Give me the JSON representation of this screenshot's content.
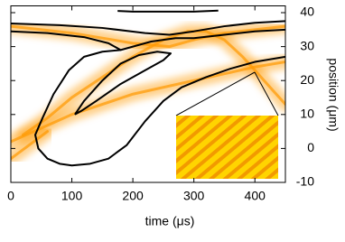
{
  "chart_data": {
    "type": "line",
    "x_label": "time (μs)",
    "y_label": "position (μm)",
    "xlim": [
      0,
      450
    ],
    "xticks": [
      0,
      100,
      200,
      300,
      400
    ],
    "ylim": [
      -10,
      42
    ],
    "yticks": [
      -10,
      0,
      10,
      20,
      30,
      40
    ],
    "beam_color": "#ff9900",
    "contour_color": "#000000",
    "beams": [
      {
        "x": [
          0,
          50,
          100,
          200,
          300,
          400,
          450
        ],
        "values": [
          2,
          6,
          10,
          16,
          20,
          24,
          25.5
        ]
      },
      {
        "x": [
          20,
          60,
          100,
          150,
          200,
          250,
          290,
          320,
          350,
          380,
          400,
          430,
          450
        ],
        "values": [
          4,
          9,
          15,
          21,
          27,
          32,
          34.5,
          34.5,
          32,
          27,
          23,
          17,
          13
        ]
      },
      {
        "x": [
          0,
          100,
          200,
          260,
          300,
          350,
          450
        ],
        "values": [
          36,
          34,
          31,
          30,
          32,
          34,
          36
        ]
      },
      {
        "x": [
          0,
          30,
          60
        ],
        "values": [
          -3,
          1,
          5
        ]
      }
    ],
    "contours": [
      {
        "x": [
          175,
          200,
          250,
          300,
          340
        ],
        "values": [
          40.5,
          40.3,
          40.3,
          40.3,
          40.6
        ]
      },
      {
        "x": [
          0,
          80,
          150,
          220,
          260,
          300,
          350,
          400,
          450
        ],
        "values": [
          36.8,
          36.3,
          35.5,
          34,
          33.5,
          34.5,
          36,
          37,
          37.5
        ]
      },
      {
        "x": [
          0,
          60,
          120,
          160,
          180,
          200,
          230,
          270,
          300,
          350,
          400,
          450
        ],
        "values": [
          34.5,
          34,
          32.8,
          31,
          29,
          30,
          31.5,
          32.5,
          32.5,
          33.5,
          34.5,
          35
        ]
      },
      {
        "x": [
          180,
          150,
          120,
          95,
          70,
          52,
          40,
          45,
          60,
          80,
          100,
          130,
          160,
          190,
          220,
          250,
          280,
          320,
          360,
          400,
          450
        ],
        "values": [
          29,
          28.5,
          27,
          23,
          16,
          9,
          4,
          0,
          -3,
          -4.5,
          -5,
          -4.5,
          -3,
          1,
          8,
          14,
          18,
          21,
          23.5,
          25.5,
          27
        ]
      },
      {
        "x": [
          105,
          120,
          150,
          180,
          210,
          240,
          262,
          250,
          220,
          180,
          140,
          115,
          105
        ],
        "values": [
          10,
          14,
          20,
          25,
          27.5,
          28.5,
          28,
          26,
          23,
          19,
          14,
          11,
          10
        ]
      }
    ]
  }
}
